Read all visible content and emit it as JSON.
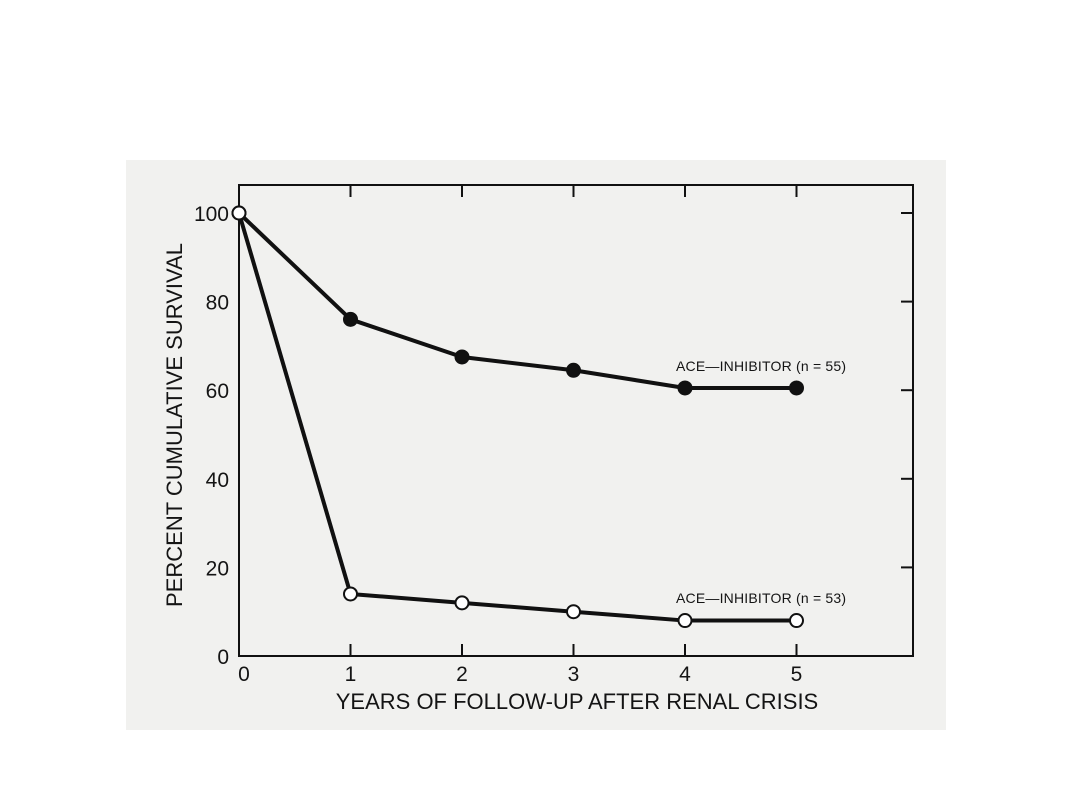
{
  "chart_data": {
    "type": "line",
    "title": "",
    "xlabel": "YEARS OF FOLLOW-UP AFTER RENAL CRISIS",
    "ylabel": "PERCENT CUMULATIVE SURVIVAL",
    "xlim": [
      0,
      6
    ],
    "ylim": [
      0,
      105
    ],
    "x_ticks": [
      0,
      1,
      2,
      3,
      4,
      5
    ],
    "y_ticks": [
      0,
      20,
      40,
      60,
      80,
      100
    ],
    "grid": false,
    "series": [
      {
        "name": "ACE—INHIBITOR (n = 55)",
        "marker": "filled-circle",
        "color": "#111111",
        "x": [
          0,
          1,
          2,
          3,
          4,
          5
        ],
        "values": [
          100,
          76,
          67.5,
          64.5,
          60.5,
          60.5
        ]
      },
      {
        "name": "ACE—INHIBITOR (n = 53)",
        "marker": "open-circle",
        "color": "#111111",
        "x": [
          0,
          1,
          2,
          3,
          4,
          5
        ],
        "values": [
          100,
          14,
          12,
          10,
          8,
          8
        ]
      }
    ]
  },
  "colors": {
    "background": "#f1f1ef",
    "ink": "#111111"
  }
}
